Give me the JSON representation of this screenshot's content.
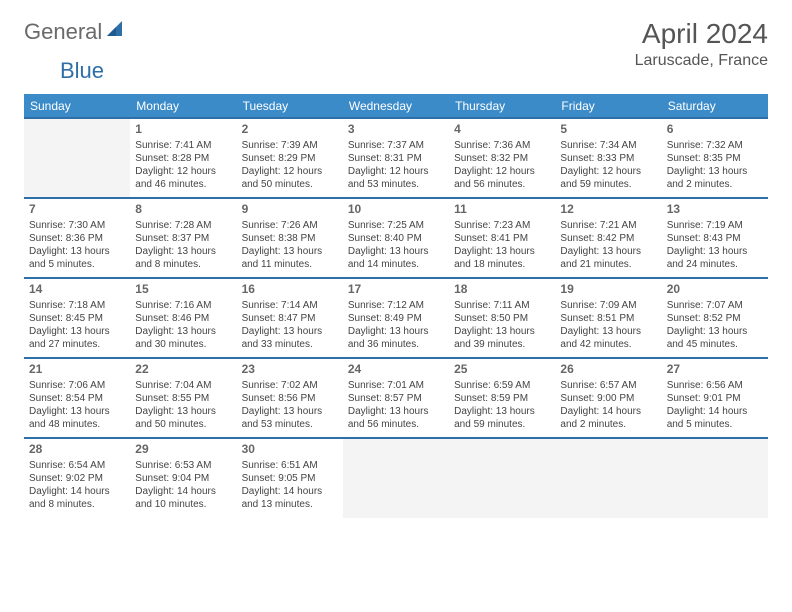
{
  "brand": {
    "general": "General",
    "blue": "Blue"
  },
  "title": {
    "month": "April 2024",
    "location": "Laruscade, France"
  },
  "colors": {
    "header_bg": "#3b8bc9",
    "header_text": "#ffffff",
    "row_divider": "#2f6fa8",
    "body_text": "#444444",
    "daynum_text": "#666666",
    "blank_bg": "#f4f4f4",
    "page_bg": "#ffffff",
    "logo_gray": "#6a6a6a",
    "logo_blue": "#2f6fa8"
  },
  "typography": {
    "month_fontsize": 28,
    "location_fontsize": 16,
    "weekday_fontsize": 12,
    "daynum_fontsize": 12,
    "cell_fontsize": 10
  },
  "weekdays": [
    "Sunday",
    "Monday",
    "Tuesday",
    "Wednesday",
    "Thursday",
    "Friday",
    "Saturday"
  ],
  "leading_blanks": 1,
  "trailing_blanks": 4,
  "days": [
    {
      "n": 1,
      "sunrise": "7:41 AM",
      "sunset": "8:28 PM",
      "daylight": "12 hours and 46 minutes."
    },
    {
      "n": 2,
      "sunrise": "7:39 AM",
      "sunset": "8:29 PM",
      "daylight": "12 hours and 50 minutes."
    },
    {
      "n": 3,
      "sunrise": "7:37 AM",
      "sunset": "8:31 PM",
      "daylight": "12 hours and 53 minutes."
    },
    {
      "n": 4,
      "sunrise": "7:36 AM",
      "sunset": "8:32 PM",
      "daylight": "12 hours and 56 minutes."
    },
    {
      "n": 5,
      "sunrise": "7:34 AM",
      "sunset": "8:33 PM",
      "daylight": "12 hours and 59 minutes."
    },
    {
      "n": 6,
      "sunrise": "7:32 AM",
      "sunset": "8:35 PM",
      "daylight": "13 hours and 2 minutes."
    },
    {
      "n": 7,
      "sunrise": "7:30 AM",
      "sunset": "8:36 PM",
      "daylight": "13 hours and 5 minutes."
    },
    {
      "n": 8,
      "sunrise": "7:28 AM",
      "sunset": "8:37 PM",
      "daylight": "13 hours and 8 minutes."
    },
    {
      "n": 9,
      "sunrise": "7:26 AM",
      "sunset": "8:38 PM",
      "daylight": "13 hours and 11 minutes."
    },
    {
      "n": 10,
      "sunrise": "7:25 AM",
      "sunset": "8:40 PM",
      "daylight": "13 hours and 14 minutes."
    },
    {
      "n": 11,
      "sunrise": "7:23 AM",
      "sunset": "8:41 PM",
      "daylight": "13 hours and 18 minutes."
    },
    {
      "n": 12,
      "sunrise": "7:21 AM",
      "sunset": "8:42 PM",
      "daylight": "13 hours and 21 minutes."
    },
    {
      "n": 13,
      "sunrise": "7:19 AM",
      "sunset": "8:43 PM",
      "daylight": "13 hours and 24 minutes."
    },
    {
      "n": 14,
      "sunrise": "7:18 AM",
      "sunset": "8:45 PM",
      "daylight": "13 hours and 27 minutes."
    },
    {
      "n": 15,
      "sunrise": "7:16 AM",
      "sunset": "8:46 PM",
      "daylight": "13 hours and 30 minutes."
    },
    {
      "n": 16,
      "sunrise": "7:14 AM",
      "sunset": "8:47 PM",
      "daylight": "13 hours and 33 minutes."
    },
    {
      "n": 17,
      "sunrise": "7:12 AM",
      "sunset": "8:49 PM",
      "daylight": "13 hours and 36 minutes."
    },
    {
      "n": 18,
      "sunrise": "7:11 AM",
      "sunset": "8:50 PM",
      "daylight": "13 hours and 39 minutes."
    },
    {
      "n": 19,
      "sunrise": "7:09 AM",
      "sunset": "8:51 PM",
      "daylight": "13 hours and 42 minutes."
    },
    {
      "n": 20,
      "sunrise": "7:07 AM",
      "sunset": "8:52 PM",
      "daylight": "13 hours and 45 minutes."
    },
    {
      "n": 21,
      "sunrise": "7:06 AM",
      "sunset": "8:54 PM",
      "daylight": "13 hours and 48 minutes."
    },
    {
      "n": 22,
      "sunrise": "7:04 AM",
      "sunset": "8:55 PM",
      "daylight": "13 hours and 50 minutes."
    },
    {
      "n": 23,
      "sunrise": "7:02 AM",
      "sunset": "8:56 PM",
      "daylight": "13 hours and 53 minutes."
    },
    {
      "n": 24,
      "sunrise": "7:01 AM",
      "sunset": "8:57 PM",
      "daylight": "13 hours and 56 minutes."
    },
    {
      "n": 25,
      "sunrise": "6:59 AM",
      "sunset": "8:59 PM",
      "daylight": "13 hours and 59 minutes."
    },
    {
      "n": 26,
      "sunrise": "6:57 AM",
      "sunset": "9:00 PM",
      "daylight": "14 hours and 2 minutes."
    },
    {
      "n": 27,
      "sunrise": "6:56 AM",
      "sunset": "9:01 PM",
      "daylight": "14 hours and 5 minutes."
    },
    {
      "n": 28,
      "sunrise": "6:54 AM",
      "sunset": "9:02 PM",
      "daylight": "14 hours and 8 minutes."
    },
    {
      "n": 29,
      "sunrise": "6:53 AM",
      "sunset": "9:04 PM",
      "daylight": "14 hours and 10 minutes."
    },
    {
      "n": 30,
      "sunrise": "6:51 AM",
      "sunset": "9:05 PM",
      "daylight": "14 hours and 13 minutes."
    }
  ],
  "labels": {
    "sunrise": "Sunrise:",
    "sunset": "Sunset:",
    "daylight": "Daylight:"
  }
}
